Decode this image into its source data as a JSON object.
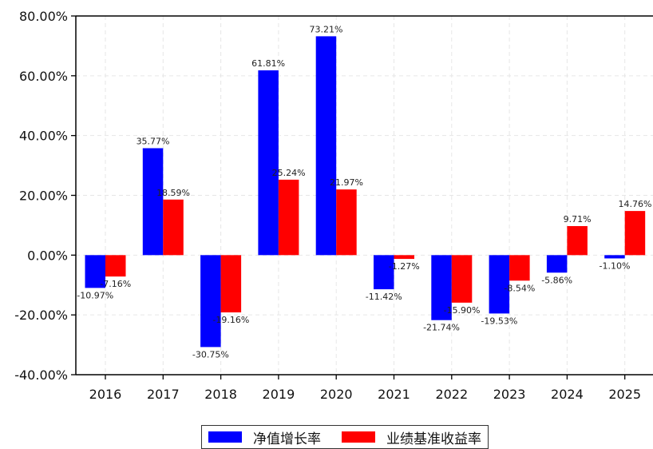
{
  "chart_data": {
    "type": "bar",
    "categories": [
      "2016",
      "2017",
      "2018",
      "2019",
      "2020",
      "2021",
      "2022",
      "2023",
      "2024",
      "2025"
    ],
    "series": [
      {
        "name": "净值增长率",
        "color": "#0000ff",
        "values": [
          -10.97,
          35.77,
          -30.75,
          61.81,
          73.21,
          -11.42,
          -21.74,
          -19.53,
          -5.86,
          -1.1
        ],
        "labels": [
          "-10.97%",
          "35.77%",
          "-30.75%",
          "61.81%",
          "73.21%",
          "-11.42%",
          "-21.74%",
          "-19.53%",
          "-5.86%",
          "-1.10%"
        ]
      },
      {
        "name": "业绩基准收益率",
        "color": "#ff0000",
        "values": [
          -7.16,
          18.59,
          -19.16,
          25.24,
          21.97,
          -1.27,
          -15.9,
          -8.54,
          9.71,
          14.76
        ],
        "labels": [
          "-7.16%",
          "18.59%",
          "-19.16%",
          "25.24%",
          "21.97%",
          "-1.27%",
          "-15.90%",
          "-8.54%",
          "9.71%",
          "14.76%"
        ]
      }
    ],
    "ylim": [
      -40,
      80
    ],
    "yticks": [
      -40,
      -20,
      0,
      20,
      40,
      60,
      80
    ],
    "ytick_labels": [
      "-40.00%",
      "-20.00%",
      "0.00%",
      "20.00%",
      "40.00%",
      "60.00%",
      "80.00%"
    ],
    "grid": true,
    "legend_position": "bottom-center"
  }
}
